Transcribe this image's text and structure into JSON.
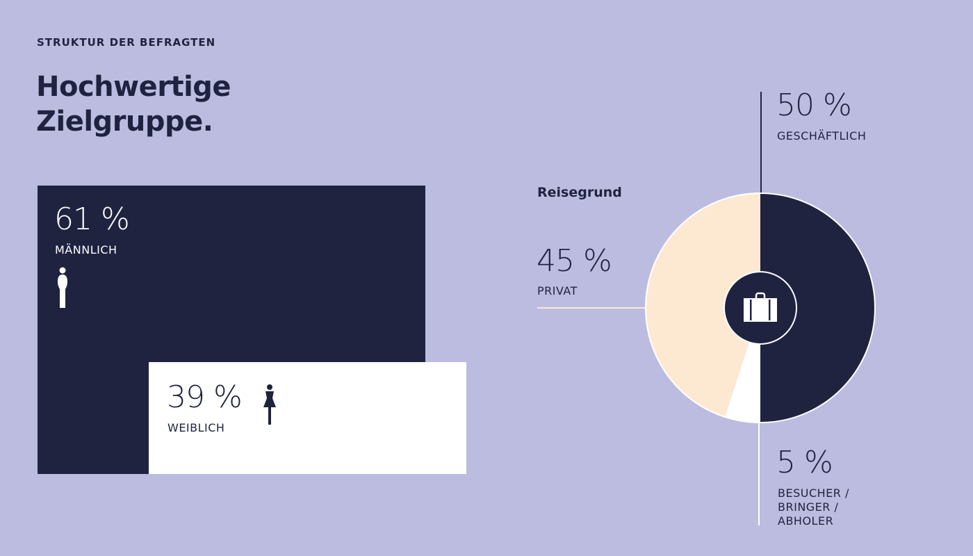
{
  "header": {
    "kicker": "STRUKTUR DER BEFRAGTEN",
    "title_line1": "Hochwertige",
    "title_line2": "Zielgruppe."
  },
  "colors": {
    "background": "#bcbce0",
    "dark": "#1f2340",
    "cream": "#fde9d2",
    "white": "#ffffff"
  },
  "chart_data": [
    {
      "type": "bar",
      "title": "",
      "categories": [
        "MÄNNLICH",
        "WEIBLICH"
      ],
      "values": [
        61,
        39
      ],
      "value_labels": [
        "61 %",
        "39 %"
      ],
      "icons": [
        "male-icon",
        "female-icon"
      ]
    },
    {
      "type": "pie",
      "title": "Reisegrund",
      "center_icon": "suitcase-icon",
      "slices": [
        {
          "label": "GESCHÄFTLICH",
          "value": 50,
          "value_label": "50 %",
          "color": "#1f2340"
        },
        {
          "label": "BESUCHER / BRINGER / ABHOLER",
          "label_lines": [
            "BESUCHER /",
            "BRINGER /",
            "ABHOLER"
          ],
          "value": 5,
          "value_label": "5 %",
          "color": "#ffffff"
        },
        {
          "label": "PRIVAT",
          "value": 45,
          "value_label": "45 %",
          "color": "#fde9d2"
        }
      ]
    }
  ]
}
